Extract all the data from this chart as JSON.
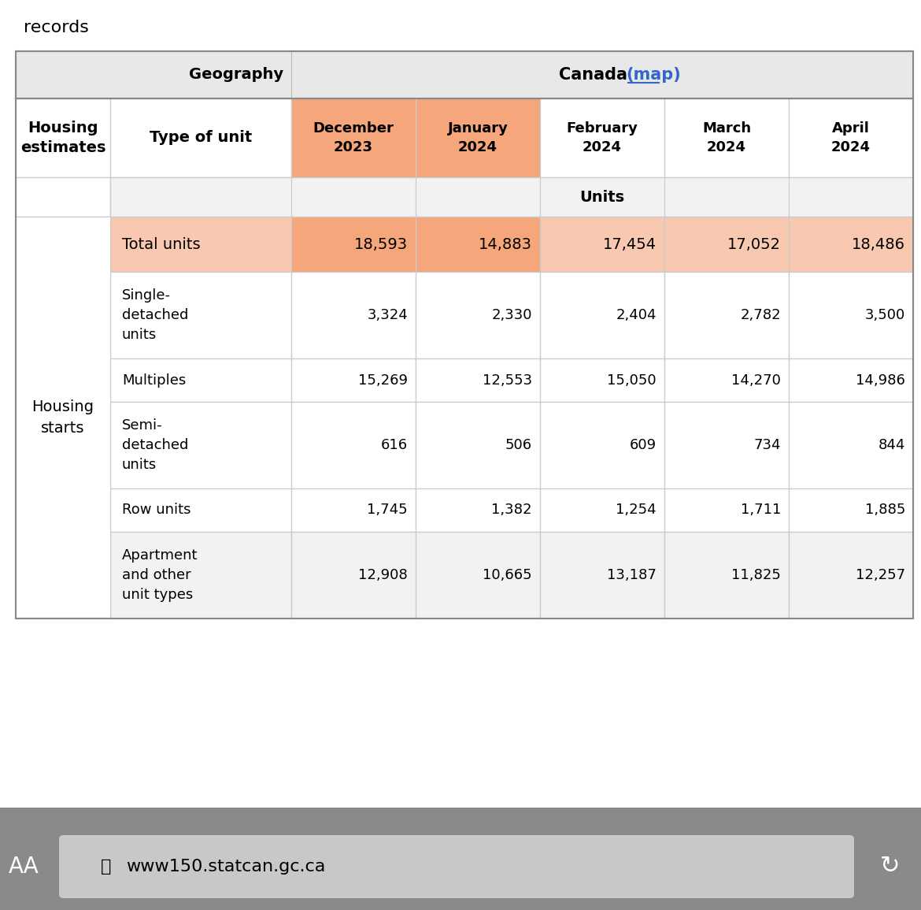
{
  "records_label": "records",
  "geography_label": "Geography",
  "canada_label": "Canada",
  "map_label": "(map)",
  "col_headers": [
    "December\n2023",
    "January\n2024",
    "February\n2024",
    "March\n2024",
    "April\n2024"
  ],
  "row_header1": "Housing\nestimates",
  "row_header2": "Type of unit",
  "units_label": "Units",
  "housing_starts_label": "Housing\nstarts",
  "rows": [
    {
      "label": "Total units",
      "values": [
        "18,593",
        "14,883",
        "17,454",
        "17,052",
        "18,486"
      ],
      "highlight": true,
      "label_bg": "#f5b89a",
      "val_bg_dec": "#f5b89a",
      "val_bg_jan": "#f5b89a",
      "val_bg_rest": "#f5c4ae"
    },
    {
      "label": "Single-\ndetached\nunits",
      "values": [
        "3,324",
        "2,330",
        "2,404",
        "2,782",
        "3,500"
      ],
      "highlight": false
    },
    {
      "label": "Multiples",
      "values": [
        "15,269",
        "12,553",
        "15,050",
        "14,270",
        "14,986"
      ],
      "highlight": false
    },
    {
      "label": "Semi-\ndetached\nunits",
      "values": [
        "616",
        "506",
        "609",
        "734",
        "844"
      ],
      "highlight": false
    },
    {
      "label": "Row units",
      "values": [
        "1,745",
        "1,382",
        "1,254",
        "1,711",
        "1,885"
      ],
      "highlight": false
    },
    {
      "label": "Apartment\nand other\nunit types",
      "values": [
        "12,908",
        "10,665",
        "13,187",
        "11,825",
        "12,257"
      ],
      "highlight": false,
      "alt_bg": true
    }
  ],
  "bg_white": "#ffffff",
  "bg_light_gray": "#f2f2f2",
  "bg_header_gray": "#e8e8e8",
  "border_color": "#cccccc",
  "highlight_orange": "#f5a67a",
  "highlight_light": "#f8c9b0",
  "text_color": "#000000",
  "link_color": "#3366cc",
  "bottom_bar_color": "#8a8a8a",
  "url_text": "www150.statcan.gc.ca",
  "url_bg": "#c8c8c8"
}
